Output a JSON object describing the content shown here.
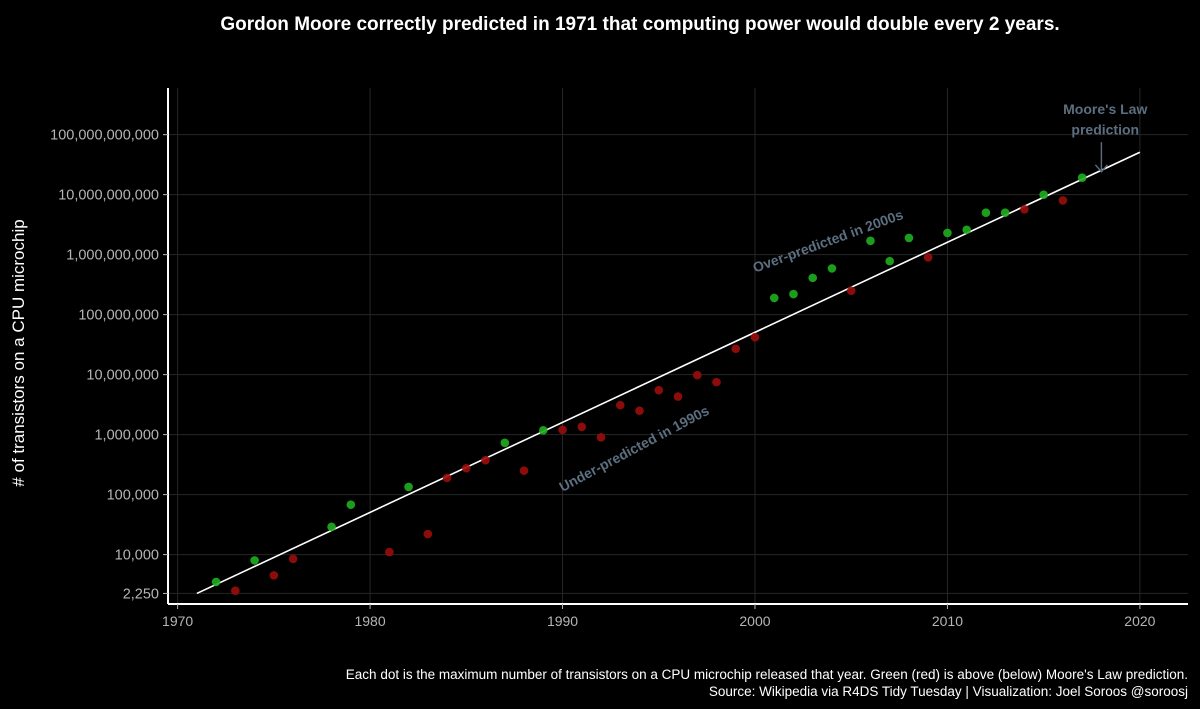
{
  "chart_data": {
    "type": "scatter",
    "title": "Gordon Moore correctly predicted in 1971 that computing power would double every 2 years.",
    "xlabel": "",
    "ylabel": "# of transistors on a CPU microchip",
    "x_scale": "linear",
    "y_scale": "log",
    "xlim": [
      1969.5,
      2022.5
    ],
    "ylim": [
      1500,
      600000000000
    ],
    "x_ticks": [
      1970,
      1980,
      1990,
      2000,
      2010,
      2020
    ],
    "x_tick_labels": [
      "1970",
      "1980",
      "1990",
      "2000",
      "2010",
      "2020"
    ],
    "y_ticks": [
      2250,
      10000,
      100000,
      1000000,
      10000000,
      100000000,
      1000000000,
      10000000000,
      100000000000
    ],
    "y_tick_labels": [
      "2,250",
      "10,000",
      "100,000",
      "1,000,000",
      "10,000,000",
      "100,000,000",
      "1,000,000,000",
      "10,000,000,000",
      "100,000,000,000"
    ],
    "grid": true,
    "legend": "none",
    "colors": {
      "above": "#1fae1f",
      "below": "#9b0c0c",
      "line": "#ffffff",
      "annotation": "#5c6f80",
      "grid": "#262626",
      "axis_text": "#b5b5b5"
    },
    "series": [
      {
        "name": "Moore's Law prediction",
        "type": "line",
        "x": [
          1971,
          2020
        ],
        "y": [
          2250,
          51000000000
        ]
      },
      {
        "type": "scatter",
        "points": [
          {
            "x": 1972,
            "y": 3500,
            "above": true
          },
          {
            "x": 1973,
            "y": 2500,
            "above": false
          },
          {
            "x": 1974,
            "y": 8000,
            "above": true
          },
          {
            "x": 1975,
            "y": 4500,
            "above": false
          },
          {
            "x": 1976,
            "y": 8500,
            "above": false
          },
          {
            "x": 1978,
            "y": 29000,
            "above": true
          },
          {
            "x": 1979,
            "y": 68000,
            "above": true
          },
          {
            "x": 1981,
            "y": 11000,
            "above": false
          },
          {
            "x": 1982,
            "y": 134000,
            "above": true
          },
          {
            "x": 1983,
            "y": 22000,
            "above": false
          },
          {
            "x": 1984,
            "y": 190000,
            "above": false
          },
          {
            "x": 1985,
            "y": 275000,
            "above": false
          },
          {
            "x": 1986,
            "y": 375000,
            "above": false
          },
          {
            "x": 1987,
            "y": 730000,
            "above": true
          },
          {
            "x": 1988,
            "y": 250000,
            "above": false
          },
          {
            "x": 1989,
            "y": 1180000,
            "above": true
          },
          {
            "x": 1990,
            "y": 1200000,
            "above": false
          },
          {
            "x": 1991,
            "y": 1350000,
            "above": false
          },
          {
            "x": 1992,
            "y": 900000,
            "above": false
          },
          {
            "x": 1993,
            "y": 3100000,
            "above": false
          },
          {
            "x": 1994,
            "y": 2500000,
            "above": false
          },
          {
            "x": 1995,
            "y": 5500000,
            "above": false
          },
          {
            "x": 1996,
            "y": 4300000,
            "above": false
          },
          {
            "x": 1997,
            "y": 9800000,
            "above": false
          },
          {
            "x": 1998,
            "y": 7500000,
            "above": false
          },
          {
            "x": 1999,
            "y": 27000000,
            "above": false
          },
          {
            "x": 2000,
            "y": 42000000,
            "above": false
          },
          {
            "x": 2001,
            "y": 190000000,
            "above": true
          },
          {
            "x": 2002,
            "y": 220000000,
            "above": true
          },
          {
            "x": 2003,
            "y": 410000000,
            "above": true
          },
          {
            "x": 2004,
            "y": 590000000,
            "above": true
          },
          {
            "x": 2005,
            "y": 250000000,
            "above": false
          },
          {
            "x": 2006,
            "y": 1700000000,
            "above": true
          },
          {
            "x": 2007,
            "y": 780000000,
            "above": true
          },
          {
            "x": 2008,
            "y": 1900000000,
            "above": true
          },
          {
            "x": 2009,
            "y": 900000000,
            "above": false
          },
          {
            "x": 2010,
            "y": 2300000000,
            "above": true
          },
          {
            "x": 2011,
            "y": 2600000000,
            "above": true
          },
          {
            "x": 2012,
            "y": 5000000000,
            "above": true
          },
          {
            "x": 2013,
            "y": 5000000000,
            "above": true
          },
          {
            "x": 2014,
            "y": 5700000000,
            "above": false
          },
          {
            "x": 2015,
            "y": 10000000000,
            "above": true
          },
          {
            "x": 2016,
            "y": 8000000000,
            "above": false
          },
          {
            "x": 2017,
            "y": 19200000000,
            "above": true
          }
        ]
      }
    ],
    "annotations": [
      {
        "text": "Over-predicted in 2000s",
        "x": 2000,
        "y": 500000000,
        "rotation": -20
      },
      {
        "text": "Under-predicted in 1990s",
        "x": 1990,
        "y": 110000,
        "rotation": -28
      },
      {
        "text": "Moore's Law",
        "x": 2018.2,
        "y": 220000000000
      },
      {
        "text": "prediction",
        "x": 2018.2,
        "y": 100000000000
      }
    ],
    "annotation_arrow": {
      "x": 2018,
      "y_from": 75000000000,
      "y_to": 24000000000
    }
  },
  "caption": {
    "line1": "Each dot is the maximum number of transistors on a CPU microchip released that year.  Green (red) is above (below) Moore's Law prediction.",
    "line2": "Source: Wikipedia via R4DS Tidy Tuesday  |  Visualization: Joel Soroos @soroosj"
  }
}
